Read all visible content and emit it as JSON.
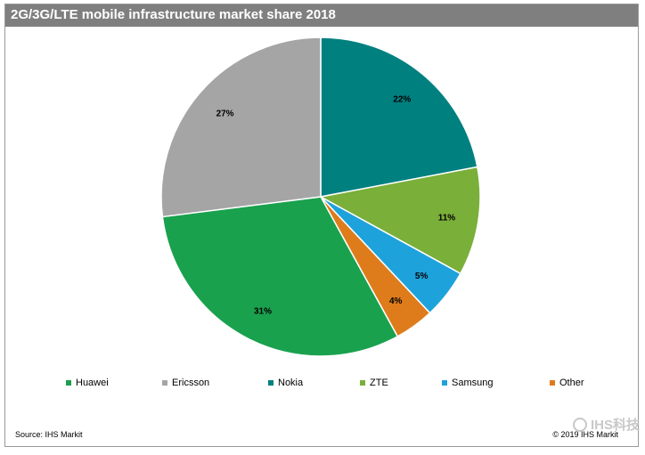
{
  "chart_data": {
    "type": "pie",
    "title": "2G/3G/LTE mobile infrastructure market share 2018",
    "categories": [
      "Huawei",
      "Ericsson",
      "Nokia",
      "ZTE",
      "Samsung",
      "Other"
    ],
    "values": [
      31,
      27,
      22,
      11,
      5,
      4
    ],
    "labels": [
      "31%",
      "27%",
      "22%",
      "11%",
      "5%",
      "4%"
    ],
    "colors": [
      "#1aa14e",
      "#a5a5a5",
      "#00807f",
      "#7aaf3a",
      "#1ea2db",
      "#de7c1c"
    ],
    "legend_position": "bottom"
  },
  "footer": {
    "source": "Source:  IHS Markit",
    "copyright": "© 2019 IHS Markit"
  },
  "watermark": {
    "text": "IHS科技",
    "icon": "wechat-icon"
  }
}
